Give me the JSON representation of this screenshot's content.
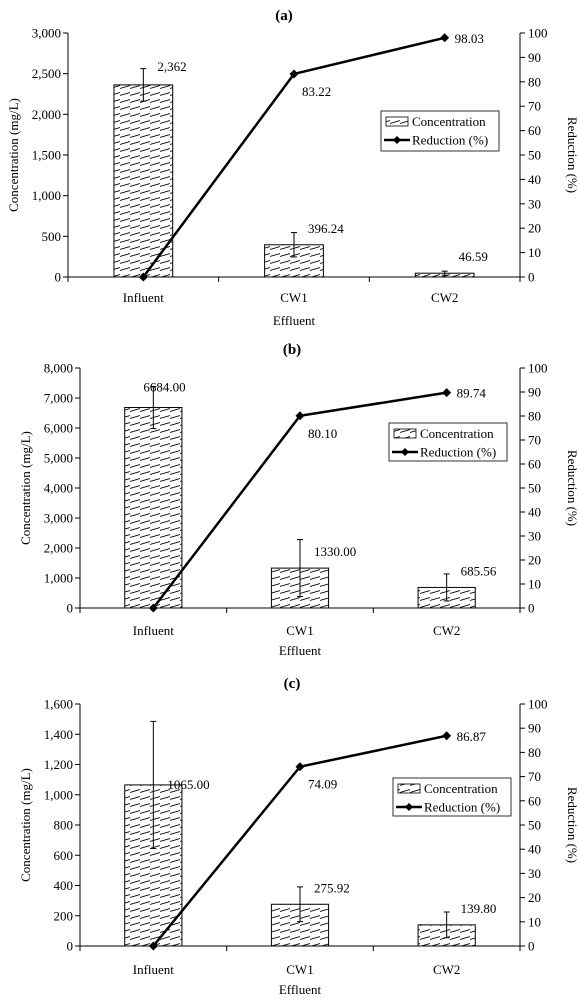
{
  "chart_data": [
    {
      "type": "bar",
      "title": "(a)",
      "xlabel": "Effluent",
      "ylabel": "Concentration (mg/L)",
      "y2label": "Reduction (%)",
      "categories": [
        "Influent",
        "CW1",
        "CW2"
      ],
      "ylim": [
        0,
        3000
      ],
      "y_ticks": [
        0,
        500,
        1000,
        1500,
        2000,
        2500,
        3000
      ],
      "y_tick_labels": [
        "0",
        "500",
        "1,000",
        "1,500",
        "2,000",
        "2,500",
        "3,000"
      ],
      "y2lim": [
        0,
        100
      ],
      "y2_ticks": [
        0,
        10,
        20,
        30,
        40,
        50,
        60,
        70,
        80,
        90,
        100
      ],
      "legend_position": "right",
      "series": [
        {
          "name": "Concentration",
          "kind": "bar",
          "values": [
            2362,
            396.24,
            46.59
          ],
          "errors": [
            200,
            150,
            25
          ],
          "labels": [
            "2,362",
            "396.24",
            "46.59"
          ]
        },
        {
          "name": "Reduction (%)",
          "kind": "line",
          "axis": "right",
          "values": [
            0,
            83.22,
            98.03
          ],
          "labels": [
            "",
            "83.22",
            "98.03"
          ]
        }
      ]
    },
    {
      "type": "bar",
      "title": "(b)",
      "xlabel": "Effluent",
      "ylabel": "Concentration (mg/L)",
      "y2label": "Reduction (%)",
      "categories": [
        "Influent",
        "CW1",
        "CW2"
      ],
      "ylim": [
        0,
        8000
      ],
      "y_ticks": [
        0,
        1000,
        2000,
        3000,
        4000,
        5000,
        6000,
        7000,
        8000
      ],
      "y_tick_labels": [
        "0",
        "1,000",
        "2,000",
        "3,000",
        "4,000",
        "5,000",
        "6,000",
        "7,000",
        "8,000"
      ],
      "y2lim": [
        0,
        100
      ],
      "y2_ticks": [
        0,
        10,
        20,
        30,
        40,
        50,
        60,
        70,
        80,
        90,
        100
      ],
      "legend_position": "top-right",
      "series": [
        {
          "name": "Concentration",
          "kind": "bar",
          "values": [
            6684,
            1330,
            685.56
          ],
          "errors": [
            700,
            950,
            450
          ],
          "labels": [
            "6684.00",
            "1330.00",
            "685.56"
          ]
        },
        {
          "name": "Reduction (%)",
          "kind": "line",
          "axis": "right",
          "values": [
            0,
            80.1,
            89.74
          ],
          "labels": [
            "",
            "80.10",
            "89.74"
          ]
        }
      ]
    },
    {
      "type": "bar",
      "title": "(c)",
      "xlabel": "Effluent",
      "ylabel": "Concentration (mg/L)",
      "y2label": "Reduction (%)",
      "categories": [
        "Influent",
        "CW1",
        "CW2"
      ],
      "ylim": [
        0,
        1600
      ],
      "y_ticks": [
        0,
        200,
        400,
        600,
        800,
        1000,
        1200,
        1400,
        1600
      ],
      "y_tick_labels": [
        "0",
        "200",
        "400",
        "600",
        "800",
        "1,000",
        "1,200",
        "1,400",
        "1,600"
      ],
      "y2lim": [
        0,
        100
      ],
      "y2_ticks": [
        0,
        10,
        20,
        30,
        40,
        50,
        60,
        70,
        80,
        90,
        100
      ],
      "legend_position": "right",
      "series": [
        {
          "name": "Concentration",
          "kind": "bar",
          "values": [
            1065,
            275.92,
            139.8
          ],
          "errors": [
            420,
            115,
            85
          ],
          "labels": [
            "1065.00",
            "275.92",
            "139.80"
          ]
        },
        {
          "name": "Reduction (%)",
          "kind": "line",
          "axis": "right",
          "values": [
            0,
            74.09,
            86.87
          ],
          "labels": [
            "",
            "74.09",
            "86.87"
          ]
        }
      ]
    }
  ]
}
